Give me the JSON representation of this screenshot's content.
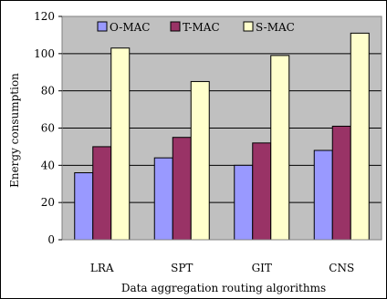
{
  "chart_data": {
    "type": "bar",
    "categories": [
      "LRA",
      "SPT",
      "GIT",
      "CNS"
    ],
    "series": [
      {
        "name": "O-MAC",
        "values": [
          36,
          44,
          40,
          48
        ],
        "color": "#9999ff"
      },
      {
        "name": "T-MAC",
        "values": [
          50,
          55,
          52,
          61
        ],
        "color": "#993366"
      },
      {
        "name": "S-MAC",
        "values": [
          103,
          85,
          99,
          111
        ],
        "color": "#ffffcc"
      }
    ],
    "title": "",
    "xlabel": "Data aggregation routing algorithms",
    "ylabel": "Energy consumption",
    "ylim": [
      0,
      120
    ],
    "yticks": [
      0,
      20,
      40,
      60,
      80,
      100,
      120
    ],
    "grid": true,
    "legend": "top-inside",
    "plot_background": "#c0c0c0"
  }
}
